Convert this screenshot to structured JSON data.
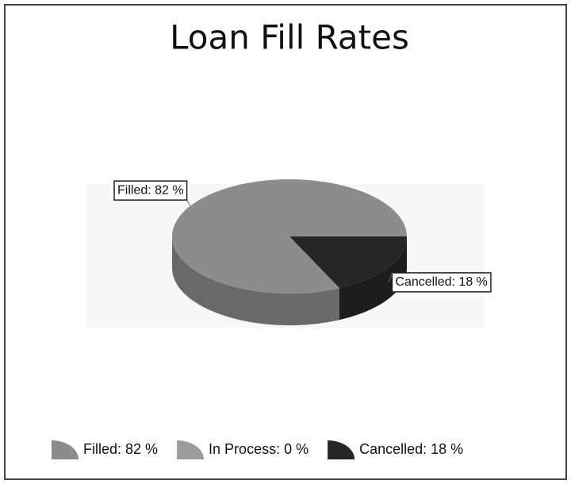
{
  "chart_data": {
    "type": "pie",
    "title": "Loan Fill Rates",
    "values": [
      82,
      0,
      18
    ],
    "value_labels": [
      "Filled: 82 %",
      "In Process: 0 %",
      "Cancelled: 18 %"
    ],
    "colors": [
      "#8c8c8c",
      "#9c9c9c",
      "#262626"
    ],
    "legend": "bottom"
  }
}
